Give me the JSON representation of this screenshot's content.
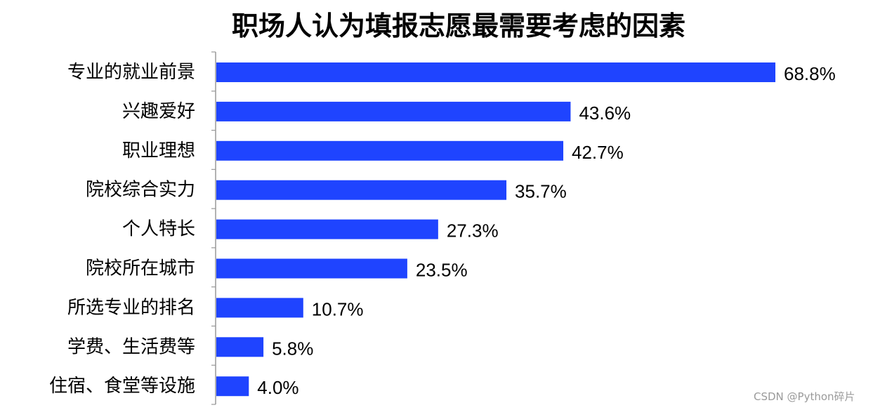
{
  "chart_data": {
    "type": "bar",
    "orientation": "horizontal",
    "title": "职场人认为填报志愿最需要考虑的因素",
    "xlabel": "",
    "ylabel": "",
    "xlim": [
      0,
      70
    ],
    "grid": false,
    "legend": "none",
    "categories": [
      "专业的就业前景",
      "兴趣爱好",
      "职业理想",
      "院校综合实力",
      "个人特长",
      "院校所在城市",
      "所选专业的排名",
      "学费、生活费等",
      "住宿、食堂等设施"
    ],
    "values": [
      68.8,
      43.6,
      42.7,
      35.7,
      27.3,
      23.5,
      10.7,
      5.8,
      4.0
    ],
    "value_labels": [
      "68.8%",
      "43.6%",
      "42.7%",
      "35.7%",
      "27.3%",
      "23.5%",
      "10.7%",
      "5.8%",
      "4.0%"
    ],
    "colors": {
      "bar": "#1f44ff",
      "axis": "#999999",
      "text": "#000000"
    }
  },
  "watermark": "CSDN @Python碎片"
}
